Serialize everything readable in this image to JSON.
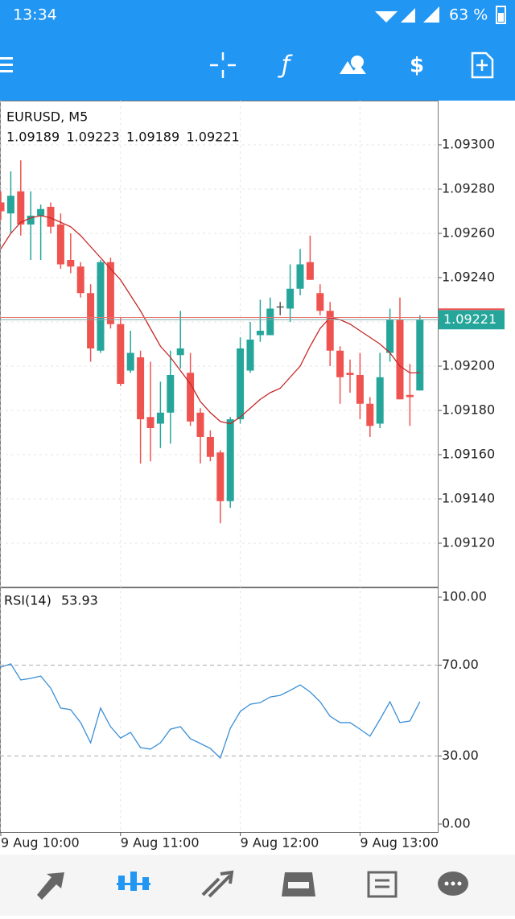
{
  "status_bar": {
    "time": "13:34",
    "battery": "63 %"
  },
  "chart_data": [
    {
      "type": "candlestick",
      "title": "EURUSD, M5",
      "open": [
        1.09274,
        1.09269,
        1.09279,
        1.09264,
        1.09268,
        1.09272,
        1.09264,
        1.09248,
        1.09245,
        1.09233,
        1.09207,
        1.09247,
        1.09219,
        1.09198,
        1.09204,
        1.09177,
        1.09174,
        1.09179,
        1.09205,
        1.09197,
        1.09179,
        1.09168,
        1.09161,
        1.09139,
        1.09176,
        1.09198,
        1.09214,
        1.09214,
        1.09227,
        1.09226,
        1.09235,
        1.09247,
        1.09233,
        1.09225,
        1.09207,
        1.09197,
        1.09196,
        1.09183,
        1.09174,
        1.09206,
        1.09221,
        1.09187,
        1.09189
      ],
      "high": [
        1.09279,
        1.09288,
        1.09293,
        1.09279,
        1.09273,
        1.09274,
        1.09269,
        1.0926,
        1.09247,
        1.09237,
        1.09248,
        1.09249,
        1.09222,
        1.09216,
        1.09207,
        1.09202,
        1.09193,
        1.09207,
        1.09225,
        1.09206,
        1.09181,
        1.09171,
        1.09162,
        1.09177,
        1.09213,
        1.0922,
        1.0923,
        1.09231,
        1.09229,
        1.09246,
        1.09253,
        1.09259,
        1.09237,
        1.09229,
        1.09209,
        1.09203,
        1.09206,
        1.09186,
        1.09206,
        1.09226,
        1.09231,
        1.09201,
        1.09223
      ],
      "low": [
        1.09266,
        1.0926,
        1.09259,
        1.09248,
        1.09248,
        1.0926,
        1.09244,
        1.09242,
        1.09231,
        1.09202,
        1.09206,
        1.09217,
        1.09191,
        1.09197,
        1.09156,
        1.09157,
        1.09163,
        1.09165,
        1.09199,
        1.09173,
        1.09156,
        1.09157,
        1.09129,
        1.09136,
        1.09174,
        1.09197,
        1.09211,
        1.09214,
        1.09223,
        1.0922,
        1.09232,
        1.09239,
        1.09223,
        1.092,
        1.09183,
        1.09188,
        1.09176,
        1.09168,
        1.09172,
        1.09202,
        1.09185,
        1.09173,
        1.09189
      ],
      "close": [
        1.0927,
        1.09277,
        1.09264,
        1.09268,
        1.09271,
        1.09263,
        1.09246,
        1.09245,
        1.09233,
        1.09208,
        1.09247,
        1.09219,
        1.09192,
        1.09206,
        1.09176,
        1.09172,
        1.09179,
        1.09196,
        1.09208,
        1.09175,
        1.09168,
        1.09159,
        1.09139,
        1.09176,
        1.09208,
        1.09212,
        1.09216,
        1.09226,
        1.09227,
        1.09235,
        1.09246,
        1.09239,
        1.09225,
        1.09207,
        1.09195,
        1.09196,
        1.09183,
        1.09173,
        1.09195,
        1.09221,
        1.09185,
        1.09186,
        1.09221
      ],
      "up_color": "#26a69a",
      "down_color": "#ef5350",
      "moving_average": {
        "color": "#c62828",
        "values": [
          1.09253,
          1.0926,
          1.09265,
          1.09267,
          1.09268,
          1.09267,
          1.09265,
          1.09263,
          1.09259,
          1.09254,
          1.09249,
          1.09244,
          1.09239,
          1.09232,
          1.09225,
          1.09217,
          1.09209,
          1.09204,
          1.09198,
          1.09192,
          1.09184,
          1.09179,
          1.09175,
          1.09174,
          1.09177,
          1.09181,
          1.09185,
          1.09188,
          1.0919,
          1.09195,
          1.092,
          1.09209,
          1.09217,
          1.09222,
          1.09221,
          1.09219,
          1.09216,
          1.09213,
          1.0921,
          1.09206,
          1.092,
          1.09197,
          1.09197
        ]
      },
      "ask": 1.09222,
      "ylim": [
        1.091,
        1.0932
      ],
      "yticks": [
        {
          "value": 1.093,
          "label": "1.09300"
        },
        {
          "value": 1.0928,
          "label": "1.09280"
        },
        {
          "value": 1.0926,
          "label": "1.09260"
        },
        {
          "value": 1.0924,
          "label": "1.09240"
        },
        {
          "value": 1.0922,
          "label": "1.09220"
        },
        {
          "value": 1.092,
          "label": "1.09200"
        },
        {
          "value": 1.0918,
          "label": "1.09180"
        },
        {
          "value": 1.0916,
          "label": "1.09160"
        },
        {
          "value": 1.0914,
          "label": "1.09140"
        },
        {
          "value": 1.0912,
          "label": "1.09120"
        }
      ],
      "grid": true
    },
    {
      "type": "line",
      "title": "RSI(14)",
      "categories": [
        "9 Aug 10:00",
        null,
        null,
        null,
        null,
        null,
        null,
        null,
        null,
        null,
        null,
        null,
        "9 Aug 11:00",
        null,
        null,
        null,
        null,
        null,
        null,
        null,
        null,
        null,
        null,
        null,
        "9 Aug 12:00",
        null,
        null,
        null,
        null,
        null,
        null,
        null,
        null,
        null,
        null,
        null,
        "9 Aug 13:00",
        null,
        null,
        null,
        null,
        null,
        null
      ],
      "values": [
        69.1,
        70.6,
        63.5,
        64.2,
        65.2,
        59.9,
        51.1,
        50.4,
        44.7,
        35.8,
        51.1,
        42.9,
        37.9,
        40.4,
        33.7,
        33.0,
        35.8,
        41.8,
        42.9,
        37.6,
        35.5,
        33.3,
        29.1,
        42.2,
        49.6,
        52.8,
        53.5,
        56.0,
        56.7,
        58.9,
        61.3,
        58.2,
        53.9,
        47.5,
        44.7,
        44.7,
        41.8,
        38.7,
        46.1,
        53.9,
        44.7,
        45.4,
        53.93
      ],
      "color": "#3a8fd6",
      "ylim": [
        0,
        100
      ],
      "yticks": [
        {
          "value": 0,
          "label": "0.00"
        },
        {
          "value": 30,
          "label": "30.00"
        },
        {
          "value": 70,
          "label": "70.00"
        },
        {
          "value": 100,
          "label": "100.00"
        }
      ],
      "dashed_levels": [
        30,
        70
      ]
    }
  ]
}
